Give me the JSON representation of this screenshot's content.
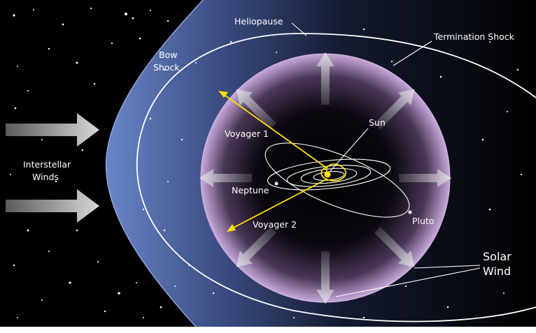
{
  "labels": {
    "heliopause": "Heliopause",
    "termination_shock": "Termination Shock",
    "bow_shock_line1": "Bow",
    "bow_shock_line2": "Shock",
    "interstellar_line1": "Interstellar",
    "interstellar_line2": "Winds",
    "voyager1": "Voyager 1",
    "voyager2": "Voyager 2",
    "sun": "Sun",
    "neptune": "Neptune",
    "pluto": "Pluto",
    "solar_wind_line1": "Solar",
    "solar_wind_line2": "Wind"
  },
  "colors": {
    "space": "#000000",
    "bow_shock_region": "#5a73b6",
    "heliosphere_edge": "#c9a9dc",
    "voyager_path": "#ffe100",
    "orbit_lines": "#ffffff"
  }
}
